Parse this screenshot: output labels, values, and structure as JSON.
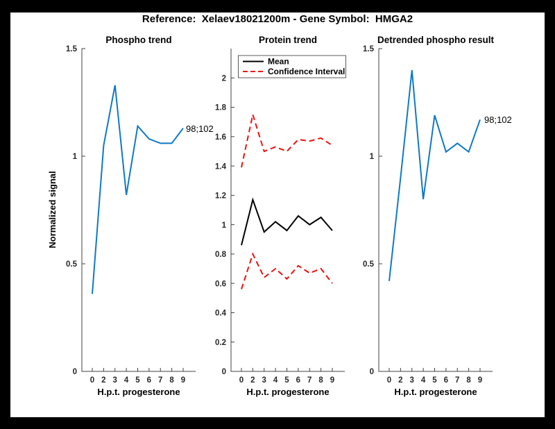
{
  "figure": {
    "title": "Reference:  Xelaev18021200m - Gene Symbol:  HMGA2",
    "background": "#000000",
    "canvas": "#ffffff"
  },
  "colors": {
    "blue": "#0E78C8",
    "red": "#F20D0D",
    "black": "#000000",
    "axis": "#404040",
    "tick_text": "#262626"
  },
  "chart_data": [
    {
      "type": "line",
      "title": "Phospho trend",
      "xlabel": "H.p.t. progesterone",
      "ylabel": "Normalized signal",
      "x": [
        0,
        2,
        3,
        4,
        5,
        6,
        7,
        8,
        9
      ],
      "x_tick_labels": [
        "0",
        "2",
        "3",
        "4",
        "5",
        "6",
        "7",
        "8",
        "9"
      ],
      "x_spacing": "equal",
      "ylim": [
        0,
        1.5
      ],
      "y_ticks": [
        "0",
        "0.5",
        "1",
        "1.5"
      ],
      "grid": false,
      "point_label": "98;102",
      "series": [
        {
          "name": "phospho-signal",
          "color": "blue",
          "dash": false,
          "values": [
            0.36,
            1.05,
            1.33,
            0.82,
            1.14,
            1.08,
            1.06,
            1.06,
            1.13
          ]
        }
      ]
    },
    {
      "type": "line",
      "title": "Protein trend",
      "xlabel": "H.p.t. progesterone",
      "ylabel": "",
      "x": [
        0,
        2,
        3,
        4,
        5,
        6,
        7,
        8,
        9
      ],
      "x_tick_labels": [
        "0",
        "2",
        "3",
        "4",
        "5",
        "6",
        "7",
        "8",
        "9"
      ],
      "x_spacing": "equal",
      "ylim": [
        0,
        2.2
      ],
      "y_ticks": [
        "0",
        "0.2",
        "0.4",
        "0.6",
        "0.8",
        "1",
        "1.2",
        "1.4",
        "1.6",
        "1.8",
        "2"
      ],
      "grid": false,
      "legend_position": "top-left",
      "legend_items": [
        "Mean",
        "Confidence Interval"
      ],
      "series": [
        {
          "name": "mean",
          "color": "black",
          "dash": false,
          "values": [
            0.86,
            1.17,
            0.95,
            1.02,
            0.96,
            1.06,
            1.0,
            1.05,
            0.96
          ]
        },
        {
          "name": "confidence-interval-upper",
          "color": "red",
          "dash": true,
          "values": [
            1.39,
            1.75,
            1.5,
            1.53,
            1.5,
            1.58,
            1.57,
            1.59,
            1.54
          ]
        },
        {
          "name": "confidence-interval-lower",
          "color": "red",
          "dash": true,
          "values": [
            0.56,
            0.8,
            0.64,
            0.7,
            0.63,
            0.72,
            0.67,
            0.7,
            0.6
          ]
        }
      ]
    },
    {
      "type": "line",
      "title": "Detrended phospho result",
      "xlabel": "H.p.t. progesterone",
      "ylabel": "",
      "x": [
        0,
        2,
        3,
        4,
        5,
        6,
        7,
        8,
        9
      ],
      "x_tick_labels": [
        "0",
        "2",
        "3",
        "4",
        "5",
        "6",
        "7",
        "8",
        "9"
      ],
      "x_spacing": "equal",
      "ylim": [
        0,
        1.5
      ],
      "y_ticks": [
        "0",
        "0.5",
        "1",
        "1.5"
      ],
      "grid": false,
      "point_label": "98;102",
      "series": [
        {
          "name": "detrended-phospho-signal",
          "color": "blue",
          "dash": false,
          "values": [
            0.42,
            0.9,
            1.4,
            0.8,
            1.19,
            1.02,
            1.06,
            1.02,
            1.17
          ]
        }
      ]
    }
  ]
}
